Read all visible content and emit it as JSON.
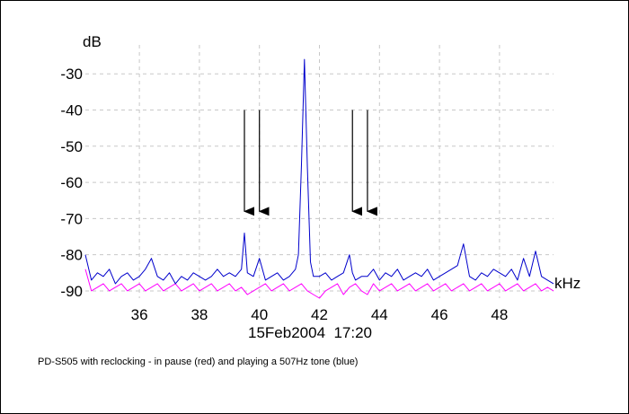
{
  "chart_data": {
    "type": "line",
    "ylabel": "dB",
    "xlabel": "kHz",
    "timestamp": "15Feb2004  17:20",
    "caption": "PD-S505 with reclocking - in pause (red) and playing a 507Hz tone (blue)",
    "xlim": [
      34.2,
      49.8
    ],
    "ylim": [
      -92,
      -22
    ],
    "x_ticks": [
      36,
      38,
      40,
      42,
      44,
      46,
      48
    ],
    "y_ticks": [
      -30,
      -40,
      -50,
      -60,
      -70,
      -80,
      -90
    ],
    "grid": true,
    "colors": {
      "blue": "#0000cc",
      "red": "#ff00ff",
      "grid": "#c8c8c8",
      "arrow": "#000000"
    },
    "series": [
      {
        "color": "#0000cc",
        "x": [
          34.2,
          34.4,
          34.6,
          34.8,
          35.0,
          35.2,
          35.4,
          35.6,
          35.8,
          36.0,
          36.2,
          36.4,
          36.6,
          36.8,
          37.0,
          37.2,
          37.4,
          37.6,
          37.8,
          38.0,
          38.2,
          38.4,
          38.6,
          38.8,
          39.0,
          39.2,
          39.4,
          39.5,
          39.6,
          39.8,
          40.0,
          40.2,
          40.4,
          40.6,
          40.8,
          41.0,
          41.2,
          41.3,
          41.4,
          41.5,
          41.6,
          41.7,
          41.8,
          42.0,
          42.2,
          42.4,
          42.6,
          42.8,
          43.0,
          43.1,
          43.2,
          43.4,
          43.6,
          43.8,
          44.0,
          44.2,
          44.4,
          44.6,
          44.8,
          45.0,
          45.2,
          45.4,
          45.6,
          45.8,
          46.0,
          46.2,
          46.4,
          46.6,
          46.8,
          47.0,
          47.2,
          47.4,
          47.6,
          47.8,
          48.0,
          48.2,
          48.4,
          48.6,
          48.8,
          49.0,
          49.2,
          49.4,
          49.6,
          49.8
        ],
        "y": [
          -80,
          -87,
          -85,
          -86,
          -84,
          -88,
          -86,
          -85,
          -87,
          -86,
          -84,
          -81,
          -86,
          -87,
          -85,
          -88,
          -86,
          -87,
          -85,
          -86,
          -87,
          -86,
          -84,
          -86,
          -85,
          -86,
          -84,
          -74,
          -85,
          -86,
          -81,
          -87,
          -86,
          -85,
          -87,
          -86,
          -84,
          -80,
          -55,
          -26,
          -56,
          -82,
          -86,
          -86,
          -85,
          -87,
          -86,
          -85,
          -80,
          -85,
          -87,
          -86,
          -86,
          -84,
          -87,
          -85,
          -86,
          -84,
          -87,
          -86,
          -85,
          -86,
          -84,
          -87,
          -86,
          -85,
          -84,
          -83,
          -77,
          -86,
          -87,
          -85,
          -86,
          -84,
          -85,
          -86,
          -84,
          -87,
          -81,
          -86,
          -79,
          -86,
          -87,
          -88
        ]
      },
      {
        "color": "#ff00ff",
        "x": [
          34.2,
          34.4,
          34.6,
          34.8,
          35.0,
          35.2,
          35.4,
          35.6,
          35.8,
          36.0,
          36.2,
          36.4,
          36.6,
          36.8,
          37.0,
          37.2,
          37.4,
          37.6,
          37.8,
          38.0,
          38.2,
          38.4,
          38.6,
          38.8,
          39.0,
          39.2,
          39.4,
          39.6,
          39.8,
          40.0,
          40.2,
          40.4,
          40.6,
          40.8,
          41.0,
          41.2,
          41.4,
          41.6,
          41.8,
          42.0,
          42.2,
          42.4,
          42.6,
          42.8,
          43.0,
          43.2,
          43.4,
          43.6,
          43.8,
          44.0,
          44.2,
          44.4,
          44.6,
          44.8,
          45.0,
          45.2,
          45.4,
          45.6,
          45.8,
          46.0,
          46.2,
          46.4,
          46.6,
          46.8,
          47.0,
          47.2,
          47.4,
          47.6,
          47.8,
          48.0,
          48.2,
          48.4,
          48.6,
          48.8,
          49.0,
          49.2,
          49.4,
          49.6,
          49.8
        ],
        "y": [
          -84,
          -90,
          -89,
          -88,
          -90,
          -89,
          -88,
          -90,
          -89,
          -88,
          -90,
          -89,
          -88,
          -90,
          -89,
          -88,
          -90,
          -89,
          -88,
          -90,
          -89,
          -88,
          -90,
          -89,
          -88,
          -90,
          -89,
          -91,
          -90,
          -89,
          -88,
          -90,
          -89,
          -88,
          -90,
          -89,
          -88,
          -90,
          -91,
          -92,
          -90,
          -89,
          -88,
          -91,
          -89,
          -88,
          -90,
          -91,
          -88,
          -90,
          -89,
          -88,
          -90,
          -89,
          -88,
          -90,
          -89,
          -88,
          -90,
          -89,
          -88,
          -90,
          -89,
          -88,
          -90,
          -89,
          -88,
          -90,
          -89,
          -88,
          -90,
          -89,
          -88,
          -90,
          -89,
          -88,
          -90,
          -89,
          -90
        ]
      }
    ],
    "annotations": [
      {
        "type": "arrow",
        "x": 39.5,
        "y_from": -40,
        "y_to": -68
      },
      {
        "type": "arrow",
        "x": 40.0,
        "y_from": -40,
        "y_to": -68
      },
      {
        "type": "arrow",
        "x": 43.1,
        "y_from": -40,
        "y_to": -68
      },
      {
        "type": "arrow",
        "x": 43.6,
        "y_from": -40,
        "y_to": -68
      }
    ]
  }
}
